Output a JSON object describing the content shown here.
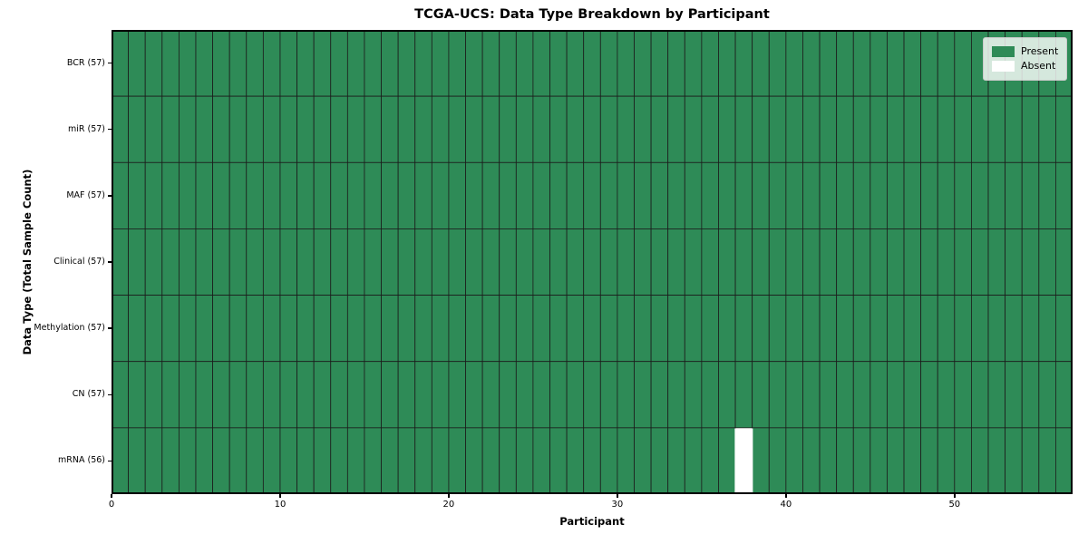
{
  "chart_data": {
    "type": "heatmap",
    "title": "TCGA-UCS: Data Type Breakdown by Participant",
    "xlabel": "Participant",
    "ylabel": "Data Type (Total Sample Count)",
    "x_ticks": [
      0,
      10,
      20,
      30,
      40,
      50
    ],
    "x_range": [
      0,
      57
    ],
    "n_participants": 57,
    "rows": [
      {
        "label": "BCR (57)",
        "data_type": "BCR",
        "total_samples": 57,
        "absent_cols": []
      },
      {
        "label": "miR (57)",
        "data_type": "miR",
        "total_samples": 57,
        "absent_cols": []
      },
      {
        "label": "MAF (57)",
        "data_type": "MAF",
        "total_samples": 57,
        "absent_cols": []
      },
      {
        "label": "Clinical (57)",
        "data_type": "Clinical",
        "total_samples": 57,
        "absent_cols": []
      },
      {
        "label": "Methylation (57)",
        "data_type": "Methylation",
        "total_samples": 57,
        "absent_cols": []
      },
      {
        "label": "CN (57)",
        "data_type": "CN",
        "total_samples": 57,
        "absent_cols": []
      },
      {
        "label": "mRNA (56)",
        "data_type": "mRNA",
        "total_samples": 56,
        "absent_cols": [
          37
        ]
      }
    ],
    "legend": [
      {
        "label": "Present",
        "color": "#2e8b57"
      },
      {
        "label": "Absent",
        "color": "#ffffff"
      }
    ],
    "legend_position": "upper right",
    "colors": {
      "present": "#2e8b57",
      "absent": "#ffffff",
      "cell_border": "#1c1c1c",
      "frame": "#000000",
      "background": "#ffffff"
    }
  }
}
